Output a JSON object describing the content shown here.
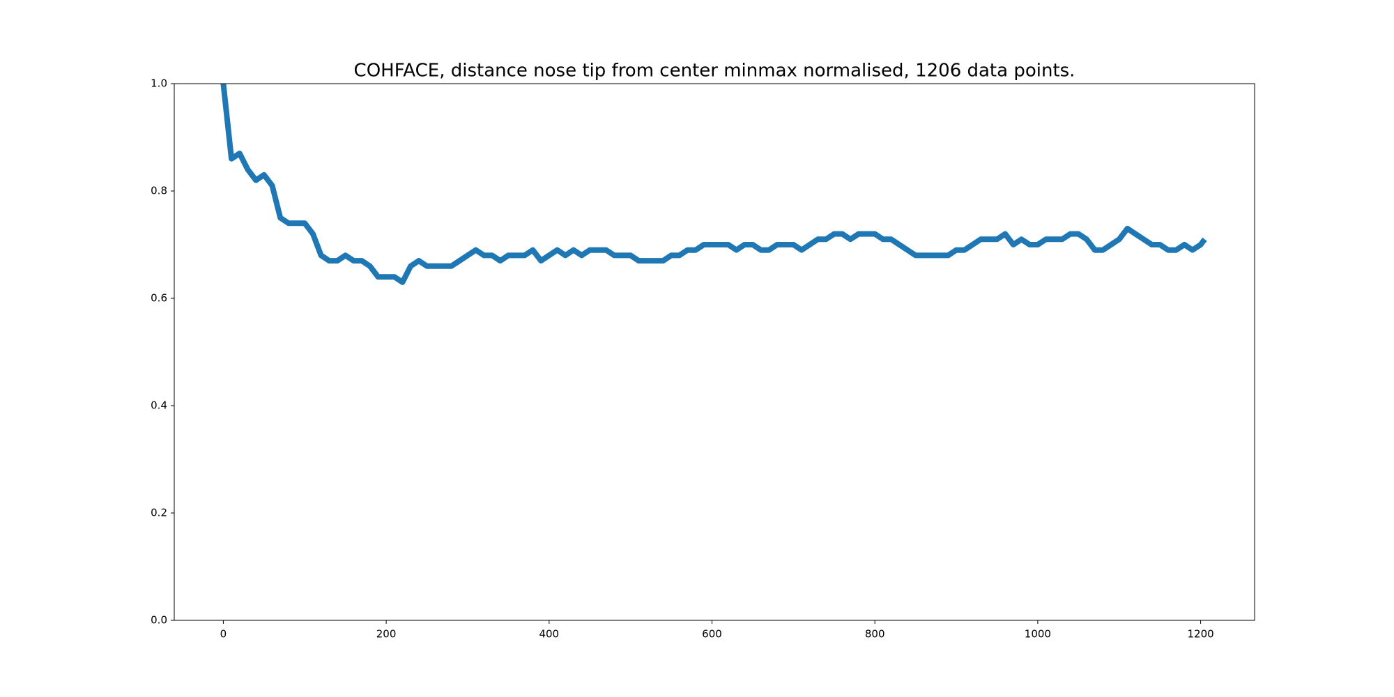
{
  "chart_data": {
    "type": "line",
    "title": "COHFACE, distance nose tip from center minmax normalised, 1206 data points.",
    "x": [
      0,
      10,
      20,
      30,
      40,
      50,
      60,
      70,
      80,
      90,
      100,
      110,
      120,
      130,
      140,
      150,
      160,
      170,
      180,
      190,
      200,
      210,
      220,
      230,
      240,
      250,
      260,
      270,
      280,
      290,
      300,
      310,
      320,
      330,
      340,
      350,
      360,
      370,
      380,
      390,
      400,
      410,
      420,
      430,
      440,
      450,
      460,
      470,
      480,
      490,
      500,
      510,
      520,
      530,
      540,
      550,
      560,
      570,
      580,
      590,
      600,
      610,
      620,
      630,
      640,
      650,
      660,
      670,
      680,
      690,
      700,
      710,
      720,
      730,
      740,
      750,
      760,
      770,
      780,
      790,
      800,
      810,
      820,
      830,
      840,
      850,
      860,
      870,
      880,
      890,
      900,
      910,
      920,
      930,
      940,
      950,
      960,
      970,
      980,
      990,
      1000,
      1010,
      1020,
      1030,
      1040,
      1050,
      1060,
      1070,
      1080,
      1090,
      1100,
      1110,
      1120,
      1130,
      1140,
      1150,
      1160,
      1170,
      1180,
      1190,
      1200,
      1205
    ],
    "series": [
      {
        "color": "#1f77b4",
        "values": [
          1.0,
          0.86,
          0.87,
          0.84,
          0.82,
          0.83,
          0.81,
          0.75,
          0.74,
          0.74,
          0.74,
          0.72,
          0.68,
          0.67,
          0.67,
          0.68,
          0.67,
          0.67,
          0.66,
          0.64,
          0.64,
          0.64,
          0.63,
          0.66,
          0.67,
          0.66,
          0.66,
          0.66,
          0.66,
          0.67,
          0.68,
          0.69,
          0.68,
          0.68,
          0.67,
          0.68,
          0.68,
          0.68,
          0.69,
          0.67,
          0.68,
          0.69,
          0.68,
          0.69,
          0.68,
          0.69,
          0.69,
          0.69,
          0.68,
          0.68,
          0.68,
          0.67,
          0.67,
          0.67,
          0.67,
          0.68,
          0.68,
          0.69,
          0.69,
          0.7,
          0.7,
          0.7,
          0.7,
          0.69,
          0.7,
          0.7,
          0.69,
          0.69,
          0.7,
          0.7,
          0.7,
          0.69,
          0.7,
          0.71,
          0.71,
          0.72,
          0.72,
          0.71,
          0.72,
          0.72,
          0.72,
          0.71,
          0.71,
          0.7,
          0.69,
          0.68,
          0.68,
          0.68,
          0.68,
          0.68,
          0.69,
          0.69,
          0.7,
          0.71,
          0.71,
          0.71,
          0.72,
          0.7,
          0.71,
          0.7,
          0.7,
          0.71,
          0.71,
          0.71,
          0.72,
          0.72,
          0.71,
          0.69,
          0.69,
          0.7,
          0.71,
          0.73,
          0.72,
          0.71,
          0.7,
          0.7,
          0.69,
          0.69,
          0.7,
          0.69,
          0.7,
          0.71
        ]
      }
    ],
    "xlim": [
      -60.25,
      1266.25
    ],
    "ylim": [
      0,
      1
    ],
    "xticks": [
      0,
      200,
      400,
      600,
      800,
      1000,
      1200
    ],
    "yticks": [
      {
        "value": 0,
        "label": "0.0"
      },
      {
        "value": 0.2,
        "label": "0.2"
      },
      {
        "value": 0.4,
        "label": "0.4"
      },
      {
        "value": 0.6,
        "label": "0.6"
      },
      {
        "value": 0.8,
        "label": "0.8"
      },
      {
        "value": 1,
        "label": "1.0"
      }
    ],
    "grid": false
  }
}
